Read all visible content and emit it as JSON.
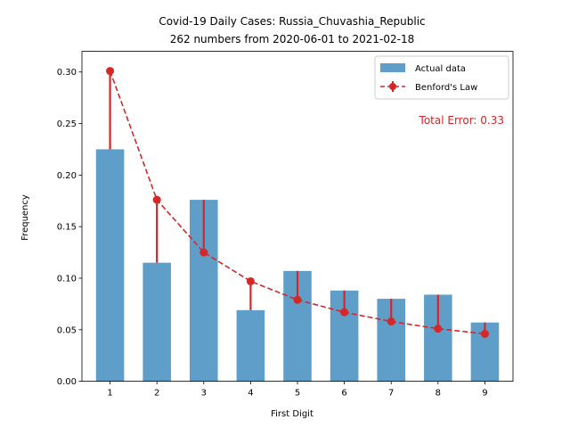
{
  "chart_data": {
    "type": "bar",
    "title_line1": "Covid-19 Daily Cases: Russia_Chuvashia_Republic",
    "title_line2": "262 numbers from 2020-06-01 to 2021-02-18",
    "xlabel": "First Digit",
    "ylabel": "Frequency",
    "categories": [
      "1",
      "2",
      "3",
      "4",
      "5",
      "6",
      "7",
      "8",
      "9"
    ],
    "ylim": [
      0,
      0.32
    ],
    "yticks": [
      "0.00",
      "0.05",
      "0.10",
      "0.15",
      "0.20",
      "0.25",
      "0.30"
    ],
    "ytick_values": [
      0,
      0.05,
      0.1,
      0.15,
      0.2,
      0.25,
      0.3
    ],
    "series": [
      {
        "name": "Actual data",
        "kind": "bar",
        "color": "#5f9ec8",
        "values": [
          0.225,
          0.115,
          0.176,
          0.069,
          0.107,
          0.088,
          0.08,
          0.084,
          0.057
        ]
      },
      {
        "name": "Benford's Law",
        "kind": "line",
        "color": "#d62728",
        "values": [
          0.301,
          0.176,
          0.125,
          0.097,
          0.079,
          0.067,
          0.058,
          0.051,
          0.046
        ]
      }
    ],
    "annotation": "Total Error: 0.33",
    "annotation_color": "#d62728",
    "grid": false,
    "legend_position": "top-right"
  }
}
